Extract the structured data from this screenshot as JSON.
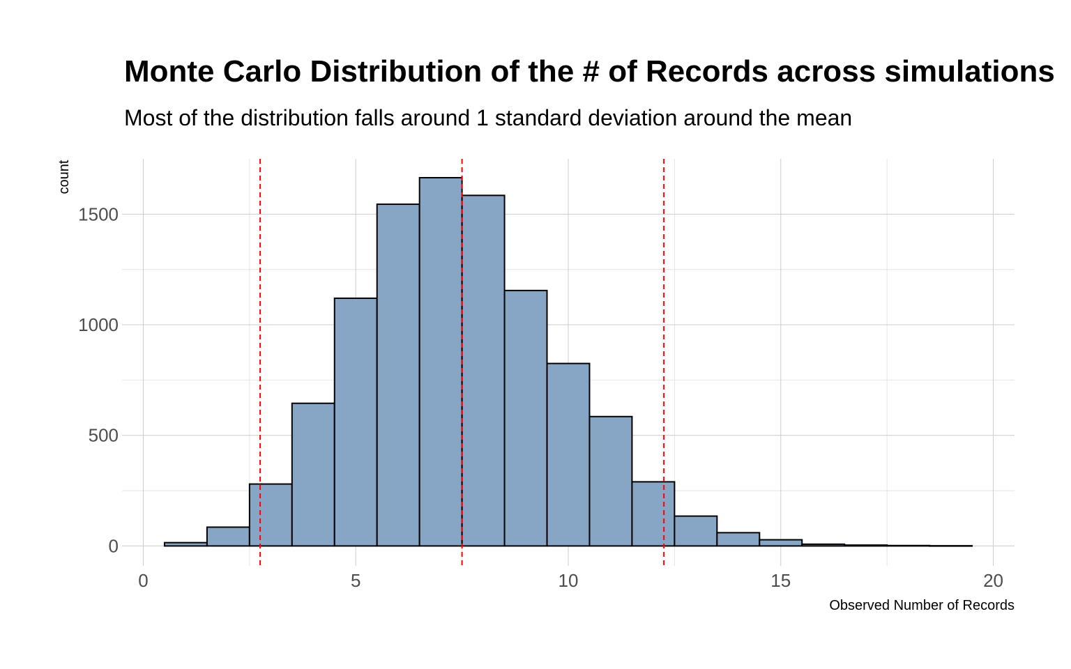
{
  "chart_data": {
    "type": "bar",
    "title": "Monte Carlo Distribution of the # of Records across simulations",
    "subtitle": "Most of the distribution falls around 1 standard deviation around the mean",
    "xlabel": "Observed Number of Records",
    "ylabel": "count",
    "xlim": [
      -0.5,
      20.5
    ],
    "ylim": [
      -90,
      1750
    ],
    "x_ticks": [
      0,
      5,
      10,
      15,
      20
    ],
    "x_tick_labels": [
      "0",
      "5",
      "10",
      "15",
      "20"
    ],
    "y_ticks": [
      0,
      500,
      1000,
      1500
    ],
    "y_tick_labels": [
      "0",
      "500",
      "1000",
      "1500"
    ],
    "grid": true,
    "bin_width": 1,
    "bins": [
      {
        "x": 1,
        "count": 15
      },
      {
        "x": 2,
        "count": 85
      },
      {
        "x": 3,
        "count": 280
      },
      {
        "x": 4,
        "count": 645
      },
      {
        "x": 5,
        "count": 1120
      },
      {
        "x": 6,
        "count": 1545
      },
      {
        "x": 7,
        "count": 1665
      },
      {
        "x": 8,
        "count": 1585
      },
      {
        "x": 9,
        "count": 1155
      },
      {
        "x": 10,
        "count": 825
      },
      {
        "x": 11,
        "count": 585
      },
      {
        "x": 12,
        "count": 290
      },
      {
        "x": 13,
        "count": 135
      },
      {
        "x": 14,
        "count": 60
      },
      {
        "x": 15,
        "count": 28
      },
      {
        "x": 16,
        "count": 8
      },
      {
        "x": 17,
        "count": 4
      },
      {
        "x": 18,
        "count": 2
      },
      {
        "x": 19,
        "count": 1
      }
    ],
    "reference_lines": [
      2.75,
      7.5,
      12.25
    ],
    "colors": {
      "bar_fill": "#87a5c4",
      "bar_outline": "#000000",
      "reference_line": "#ff0000"
    }
  }
}
